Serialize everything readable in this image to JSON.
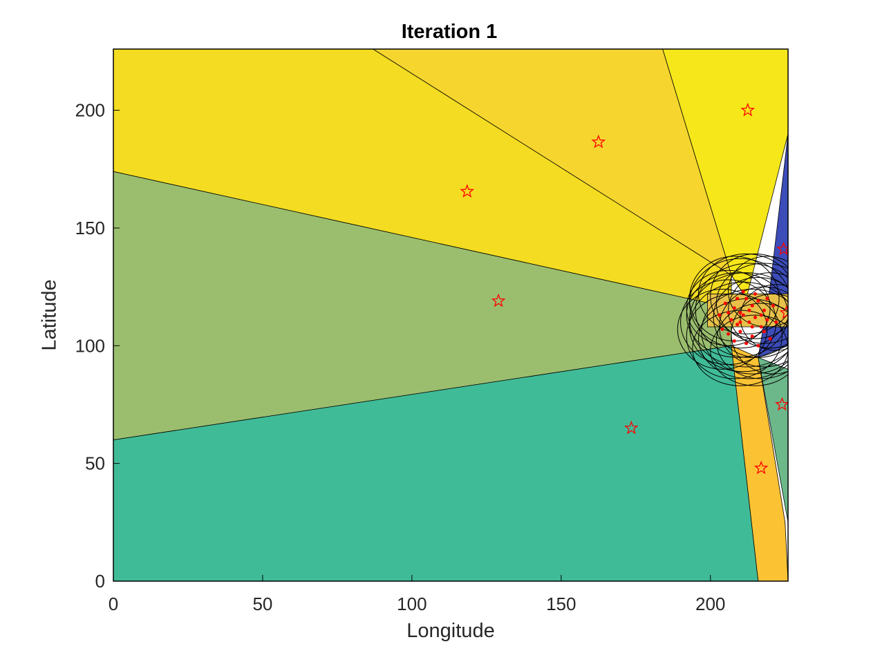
{
  "chart_data": {
    "type": "scatter",
    "title": "Iteration 1",
    "xlabel": "Longitude",
    "ylabel": "Latitude",
    "xlim": [
      0,
      226
    ],
    "ylim": [
      0,
      226
    ],
    "x_ticks": [
      0,
      50,
      100,
      150,
      200
    ],
    "y_ticks": [
      0,
      50,
      100,
      150,
      200
    ],
    "grid": false,
    "colors": {
      "axes": "#000000",
      "marker": "#ff0000",
      "circle": "#000000"
    },
    "regions": [
      {
        "color": "#40bb98",
        "polygon": [
          [
            0,
            0
          ],
          [
            216,
            0
          ],
          [
            207,
            100
          ],
          [
            0,
            60
          ]
        ]
      },
      {
        "color": "#9abe6e",
        "polygon": [
          [
            0,
            60
          ],
          [
            207,
            100
          ],
          [
            207,
            116
          ],
          [
            0,
            174
          ]
        ]
      },
      {
        "color": "#f3dc21",
        "polygon": [
          [
            0,
            174
          ],
          [
            207,
            116
          ],
          [
            207,
            130
          ],
          [
            87,
            226
          ],
          [
            0,
            226
          ]
        ]
      },
      {
        "color": "#f5d52e",
        "polygon": [
          [
            87,
            226
          ],
          [
            184,
            226
          ],
          [
            207,
            130
          ]
        ]
      },
      {
        "color": "#f5e71a",
        "polygon": [
          [
            184,
            226
          ],
          [
            226,
            226
          ],
          [
            226,
            190
          ],
          [
            212,
            120
          ],
          [
            207,
            130
          ]
        ]
      },
      {
        "color": "#3c4cb8",
        "polygon": [
          [
            226,
            190
          ],
          [
            226,
            100
          ],
          [
            216,
            95
          ],
          [
            220,
            125
          ]
        ]
      },
      {
        "color": "#fbc334",
        "polygon": [
          [
            207,
            100
          ],
          [
            216,
            95
          ],
          [
            225,
            25
          ],
          [
            226,
            0
          ],
          [
            216,
            0
          ]
        ]
      },
      {
        "color": "#6cb88a",
        "polygon": [
          [
            216,
            95
          ],
          [
            226,
            90
          ],
          [
            226,
            25
          ]
        ]
      },
      {
        "color": "#e8c14a",
        "polygon": [
          [
            199,
            108
          ],
          [
            226,
            108
          ],
          [
            226,
            122
          ],
          [
            199,
            122
          ]
        ]
      }
    ],
    "stars": [
      [
        118.5,
        165.5
      ],
      [
        162.5,
        186.5
      ],
      [
        212.5,
        200
      ],
      [
        129,
        119
      ],
      [
        173.5,
        65
      ],
      [
        217,
        48
      ],
      [
        224,
        75
      ],
      [
        224.5,
        141
      ],
      [
        225.5,
        114
      ]
    ],
    "points": [
      [
        205,
        118
      ],
      [
        208,
        116
      ],
      [
        210,
        114
      ],
      [
        212,
        120
      ],
      [
        214,
        117
      ],
      [
        216,
        119
      ],
      [
        218,
        115
      ],
      [
        207,
        111
      ],
      [
        209,
        109
      ],
      [
        211,
        113
      ],
      [
        213,
        110
      ],
      [
        215,
        112
      ],
      [
        217,
        108
      ],
      [
        219,
        111
      ],
      [
        204,
        107
      ],
      [
        206,
        105
      ],
      [
        210,
        106
      ],
      [
        214,
        104
      ],
      [
        218,
        106
      ],
      [
        220,
        103
      ],
      [
        212,
        101
      ],
      [
        208,
        102
      ],
      [
        216,
        100
      ],
      [
        221,
        117
      ],
      [
        222,
        110
      ],
      [
        203,
        113
      ],
      [
        211,
        123
      ],
      [
        215,
        122
      ],
      [
        209,
        120
      ],
      [
        213,
        115
      ],
      [
        217,
        113
      ],
      [
        210,
        110
      ],
      [
        214,
        108
      ],
      [
        206,
        114
      ],
      [
        219,
        120
      ]
    ],
    "circles": [
      {
        "center": [
          208,
          120
        ],
        "rx": 15,
        "ry": 18
      },
      {
        "center": [
          212,
          122
        ],
        "rx": 16,
        "ry": 17
      },
      {
        "center": [
          210,
          118
        ],
        "rx": 17,
        "ry": 19
      },
      {
        "center": [
          215,
          121
        ],
        "rx": 15,
        "ry": 18
      },
      {
        "center": [
          218,
          118
        ],
        "rx": 16,
        "ry": 17
      },
      {
        "center": [
          213,
          115
        ],
        "rx": 18,
        "ry": 20
      },
      {
        "center": [
          209,
          113
        ],
        "rx": 17,
        "ry": 18
      },
      {
        "center": [
          216,
          112
        ],
        "rx": 15,
        "ry": 17
      },
      {
        "center": [
          220,
          115
        ],
        "rx": 14,
        "ry": 16
      },
      {
        "center": [
          206,
          110
        ],
        "rx": 16,
        "ry": 18
      },
      {
        "center": [
          211,
          108
        ],
        "rx": 18,
        "ry": 19
      },
      {
        "center": [
          214,
          106
        ],
        "rx": 17,
        "ry": 18
      },
      {
        "center": [
          218,
          108
        ],
        "rx": 15,
        "ry": 17
      },
      {
        "center": [
          204,
          107
        ],
        "rx": 15,
        "ry": 17
      },
      {
        "center": [
          208,
          104
        ],
        "rx": 16,
        "ry": 18
      },
      {
        "center": [
          213,
          103
        ],
        "rx": 17,
        "ry": 17
      },
      {
        "center": [
          217,
          102
        ],
        "rx": 15,
        "ry": 16
      },
      {
        "center": [
          221,
          105
        ],
        "rx": 14,
        "ry": 17
      },
      {
        "center": [
          210,
          99
        ],
        "rx": 16,
        "ry": 16
      },
      {
        "center": [
          215,
          98
        ],
        "rx": 15,
        "ry": 15
      },
      {
        "center": [
          219,
          123
        ],
        "rx": 13,
        "ry": 15
      },
      {
        "center": [
          206,
          116
        ],
        "rx": 14,
        "ry": 16
      },
      {
        "center": [
          212,
          111
        ],
        "rx": 19,
        "ry": 20
      },
      {
        "center": [
          222,
          112
        ],
        "rx": 12,
        "ry": 14
      }
    ]
  }
}
